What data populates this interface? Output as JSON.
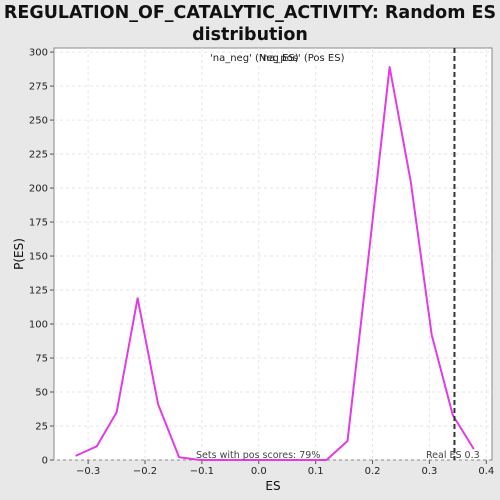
{
  "chart_data": {
    "type": "line",
    "title_line1": "REGULATION_OF_CATALYTIC_ACTIVITY: Random ES",
    "title_line2": "distribution",
    "xlabel": "ES",
    "ylabel": "P(ES)",
    "xlim": [
      -0.36,
      0.41
    ],
    "ylim": [
      0,
      303
    ],
    "xticks": [
      -0.3,
      -0.2,
      -0.1,
      0.0,
      0.1,
      0.2,
      0.3,
      0.4
    ],
    "xtick_labels": [
      "−0.3",
      "−0.2",
      "−0.1",
      "0.0",
      "0.1",
      "0.2",
      "0.3",
      "0.4"
    ],
    "yticks": [
      0,
      25,
      50,
      75,
      100,
      125,
      150,
      175,
      200,
      225,
      250,
      275,
      300
    ],
    "grid": true,
    "legend": {
      "position": "top-center",
      "entries": [
        {
          "label": "'na_neg' (Neg ES)",
          "color": "#4b4bd6"
        },
        {
          "label": "'na_pos' (Pos ES)",
          "color": "#e0413c"
        }
      ]
    },
    "series": [
      {
        "color": "#e23ce2",
        "x": [
          -0.322,
          -0.285,
          -0.25,
          -0.213,
          -0.177,
          -0.14,
          -0.103,
          -0.066,
          -0.029,
          0.008,
          0.045,
          0.082,
          0.119,
          0.156,
          0.193,
          0.23,
          0.267,
          0.304,
          0.341,
          0.378
        ],
        "y": [
          3,
          10,
          35,
          119,
          41,
          2,
          0,
          0,
          0,
          0,
          0,
          0,
          0,
          14,
          150,
          289,
          205,
          92,
          33,
          8
        ]
      }
    ],
    "vline": {
      "x": 0.344,
      "label": "Real ES 0.3",
      "color": "#333333",
      "style": "dashed"
    },
    "annotation": "Sets with pos scores: 79%"
  }
}
